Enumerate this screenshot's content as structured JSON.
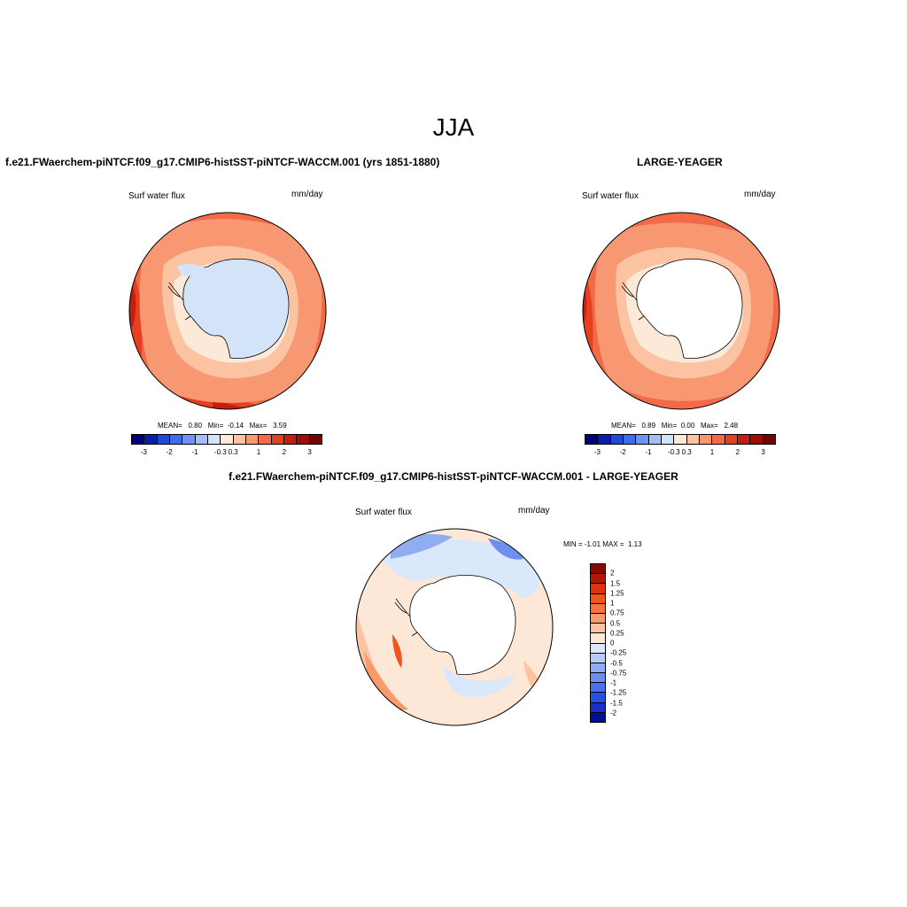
{
  "main_title": "JJA",
  "panels": {
    "left": {
      "case_title": "f.e21.FWaerchem-piNTCF.f09_g17.CMIP6-histSST-piNTCF-WACCM.001 (yrs 1851-1880)",
      "variable_label": "Surf water flux",
      "units_label": "mm/day",
      "stats": {
        "mean_label": "MEAN=",
        "mean": "0.80",
        "min_label": "Min=",
        "min": "-0.14",
        "max_label": "Max=",
        "max": "3.59"
      }
    },
    "right": {
      "case_title": "LARGE-YEAGER",
      "variable_label": "Surf water flux",
      "units_label": "mm/day",
      "stats": {
        "mean_label": "MEAN=",
        "mean": "0.89",
        "min_label": "Min=",
        "min": "0.00",
        "max_label": "Max=",
        "max": "2.48"
      }
    },
    "diff": {
      "case_title": "f.e21.FWaerchem-piNTCF.f09_g17.CMIP6-histSST-piNTCF-WACCM.001 - LARGE-YEAGER",
      "variable_label": "Surf water flux",
      "units_label": "mm/day",
      "stats": {
        "min_label": "MIN =",
        "min": "-1.01",
        "max_label": "MAX =",
        "max": "1.13"
      }
    }
  },
  "colorbar_top": {
    "colors": [
      "#00007f",
      "#0a1fa3",
      "#1f49d8",
      "#3d6cf2",
      "#6e92f2",
      "#a3bdf5",
      "#d3e3f8",
      "#fde9d8",
      "#fcc3a3",
      "#f89873",
      "#f26a47",
      "#e64020",
      "#c41f0e",
      "#9b1005",
      "#6f0401"
    ],
    "tick_labels": [
      "-3",
      "-2",
      "-1",
      "-0.3",
      "0.3",
      "1",
      "2",
      "3"
    ]
  },
  "colorbar_diff": {
    "colors_top_to_bottom": [
      "#8b0a00",
      "#b01a05",
      "#d9340e",
      "#f2541f",
      "#f7733e",
      "#fa9a6a",
      "#fcc3a3",
      "#fde7d6",
      "#d9e8fb",
      "#b7cdf6",
      "#8fadf0",
      "#6d8ff0",
      "#4b70ef",
      "#2a4fe6",
      "#1532c4",
      "#000f8f"
    ],
    "tick_labels": [
      "2",
      "1.5",
      "1.25",
      "1",
      "0.75",
      "0.5",
      "0.25",
      "0",
      "-0.25",
      "-0.5",
      "-0.75",
      "-1",
      "-1.25",
      "-1.5",
      "-2"
    ]
  }
}
